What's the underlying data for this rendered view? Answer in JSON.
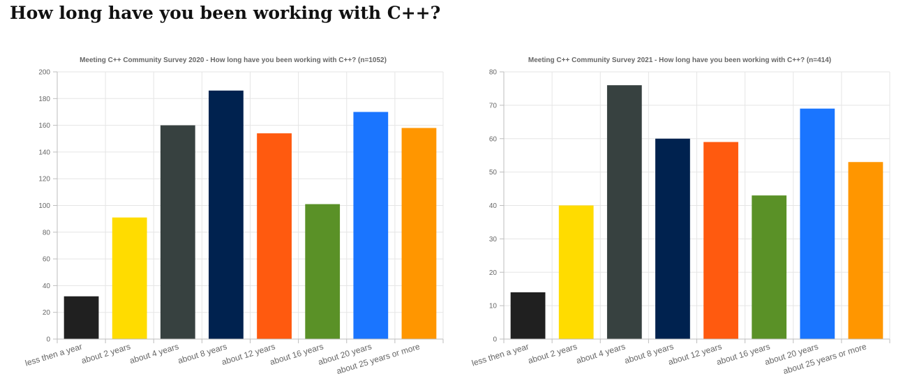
{
  "page": {
    "heading": "How long have you been working with C++?"
  },
  "colors": {
    "bars": [
      "#202020",
      "#ffdc00",
      "#374140",
      "#00224f",
      "#ff5a0f",
      "#5a9127",
      "#1a75ff",
      "#ff9600"
    ]
  },
  "chart_data": [
    {
      "type": "bar",
      "title": "Meeting C++ Community Survey 2020 - How long have you been working with C++? (n=1052)",
      "categories": [
        "less then a year",
        "about 2 years",
        "about 4 years",
        "about 8 years",
        "about 12 years",
        "about 16 years",
        "about 20 years",
        "about 25 years or more"
      ],
      "values": [
        32,
        91,
        160,
        186,
        154,
        101,
        170,
        158
      ],
      "ylim": [
        0,
        200
      ],
      "yticks": [
        0,
        20,
        40,
        60,
        80,
        100,
        120,
        140,
        160,
        180,
        200
      ],
      "grid": true,
      "legend": "none"
    },
    {
      "type": "bar",
      "title": "Meeting C++ Community Survey 2021  - How long have you been working with C++? (n=414)",
      "categories": [
        "less then a year",
        "about 2 years",
        "about 4 years",
        "about 8 years",
        "about 12 years",
        "about 16 years",
        "about 20 years",
        "about 25 years or more"
      ],
      "values": [
        14,
        40,
        76,
        60,
        59,
        43,
        69,
        53
      ],
      "ylim": [
        0,
        80
      ],
      "yticks": [
        0,
        10,
        20,
        30,
        40,
        50,
        60,
        70,
        80
      ],
      "grid": true,
      "legend": "none"
    }
  ]
}
